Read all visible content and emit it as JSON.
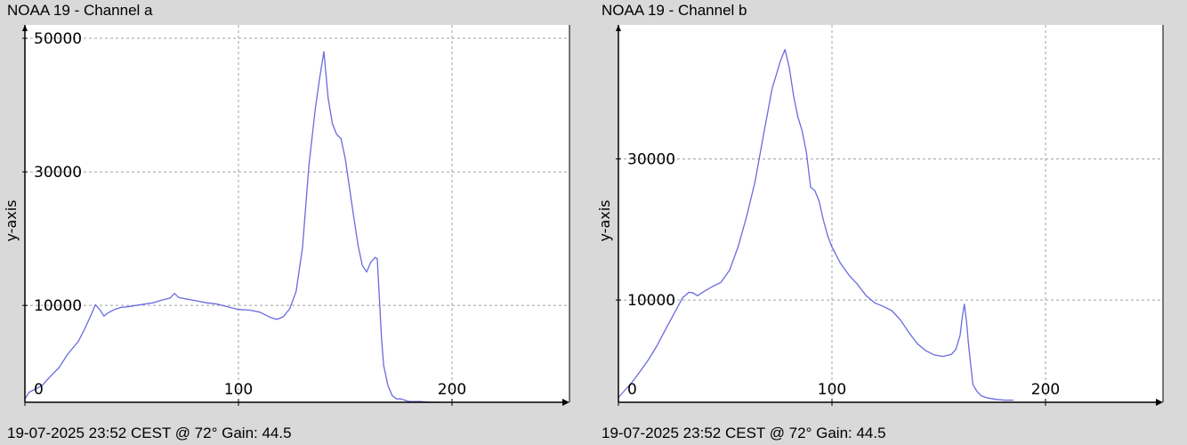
{
  "panels": [
    {
      "title": "NOAA 19 - Channel a",
      "footer": "19-07-2025 23:52 CEST @ 72° Gain: 44.5"
    },
    {
      "title": "NOAA 19 - Channel b",
      "footer": "19-07-2025 23:52 CEST @ 72° Gain: 44.5"
    }
  ],
  "colors": {
    "background": "#d9d9d9",
    "plot_area": "#ffffff",
    "line": "#6a6adf",
    "grid": "#a0a0a0",
    "axis": "#000000"
  },
  "chart_data": [
    {
      "type": "line",
      "title": "NOAA 19 - Channel a",
      "ylabel": "y-axis",
      "xlabel": "",
      "xlim": [
        0,
        255
      ],
      "ylim": [
        -4500,
        52000
      ],
      "xticks": [
        0,
        100,
        200
      ],
      "yticks": [
        10000,
        30000,
        50000
      ],
      "ytick_labels": [
        "10000",
        "30000",
        "50000"
      ],
      "xtick_labels": [
        "0",
        "100",
        "200"
      ],
      "grid": true,
      "series": [
        {
          "x": [
            0,
            2,
            5,
            8,
            12,
            16,
            20,
            25,
            28,
            31,
            33,
            35,
            37,
            39,
            42,
            45,
            48,
            52,
            56,
            60,
            64,
            68,
            70,
            72,
            75,
            80,
            85,
            90,
            95,
            100,
            105,
            110,
            115,
            118,
            121,
            124,
            127,
            130,
            133,
            136,
            138,
            140,
            142,
            144,
            146,
            148,
            150,
            152,
            154,
            156,
            158,
            160,
            162,
            164,
            165,
            166,
            167,
            168,
            170,
            172,
            174,
            176,
            178,
            180,
            185,
            190,
            195
          ],
          "values": [
            -4000,
            -3000,
            -2500,
            -2000,
            -600,
            700,
            2700,
            4600,
            6500,
            8600,
            10100,
            9400,
            8400,
            8900,
            9400,
            9700,
            9800,
            10000,
            10200,
            10400,
            10800,
            11100,
            11800,
            11200,
            11000,
            10700,
            10400,
            10200,
            9800,
            9400,
            9300,
            9000,
            8200,
            7900,
            8300,
            9500,
            12100,
            18700,
            31000,
            39500,
            44000,
            48000,
            41000,
            37200,
            35600,
            35000,
            32000,
            27600,
            23200,
            19000,
            16000,
            15000,
            16500,
            17200,
            17000,
            11000,
            5000,
            1000,
            -2000,
            -3500,
            -4000,
            -4000,
            -4200,
            -4400,
            -4400,
            -4500,
            -4500
          ]
        }
      ]
    },
    {
      "type": "line",
      "title": "NOAA 19 - Channel b",
      "ylabel": "y-axis",
      "xlabel": "",
      "xlim": [
        0,
        255
      ],
      "ylim": [
        -4500,
        49000
      ],
      "xticks": [
        0,
        100,
        200
      ],
      "yticks": [
        10000,
        30000
      ],
      "ytick_labels": [
        "10000",
        "30000"
      ],
      "xtick_labels": [
        "0",
        "100",
        "200"
      ],
      "grid": true,
      "series": [
        {
          "x": [
            0,
            3,
            6,
            10,
            14,
            18,
            22,
            27,
            30,
            33,
            35,
            37,
            40,
            44,
            48,
            52,
            56,
            60,
            64,
            68,
            72,
            76,
            78,
            80,
            82,
            84,
            86,
            88,
            90,
            92,
            94,
            96,
            98,
            100,
            104,
            108,
            112,
            116,
            120,
            124,
            128,
            132,
            136,
            140,
            144,
            148,
            152,
            156,
            158,
            160,
            161,
            162,
            163,
            164,
            166,
            168,
            170,
            173,
            177,
            181,
            185
          ],
          "values": [
            -3800,
            -2800,
            -1800,
            -200,
            1500,
            3500,
            5800,
            8600,
            10300,
            11100,
            11000,
            10600,
            11200,
            11900,
            12500,
            14200,
            17500,
            21800,
            26800,
            33500,
            40000,
            44000,
            45500,
            43000,
            39000,
            36000,
            34000,
            31000,
            26000,
            25500,
            24000,
            21300,
            19100,
            17500,
            15200,
            13500,
            12200,
            10600,
            9600,
            9100,
            8500,
            7200,
            5400,
            3800,
            2800,
            2200,
            2000,
            2300,
            3000,
            5000,
            7500,
            9400,
            7000,
            3500,
            -2000,
            -3000,
            -3600,
            -3900,
            -4100,
            -4200,
            -4200
          ]
        }
      ]
    }
  ]
}
